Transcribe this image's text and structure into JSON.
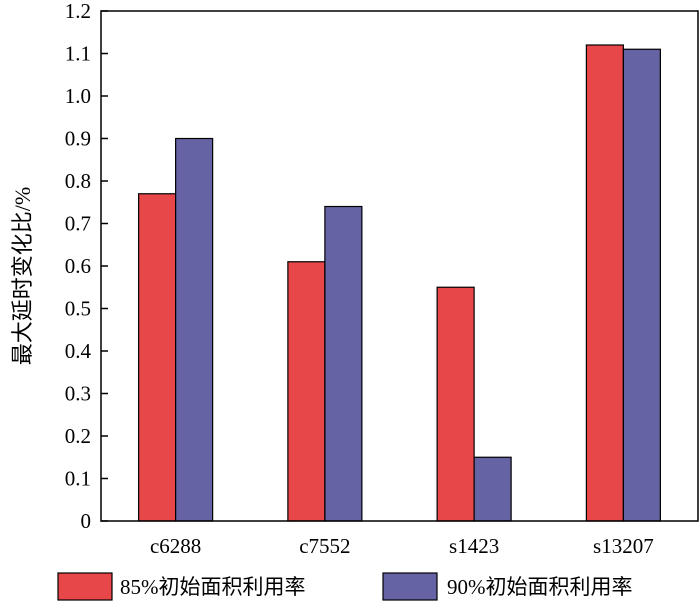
{
  "chart_data": {
    "type": "bar",
    "title": "",
    "xlabel": "",
    "ylabel": "最大延时变化比/%",
    "categories": [
      "c6288",
      "c7552",
      "s1423",
      "s13207"
    ],
    "series": [
      {
        "name": "85%初始面积利用率",
        "values": [
          0.77,
          0.61,
          0.55,
          1.12
        ],
        "color": "#e8474a"
      },
      {
        "name": "90%初始面积利用率",
        "values": [
          0.9,
          0.74,
          0.15,
          1.11
        ],
        "color": "#6563a4"
      }
    ],
    "ylim": [
      0,
      1.2
    ],
    "yticks": [
      "0",
      "0.1",
      "0.2",
      "0.3",
      "0.4",
      "0.5",
      "0.6",
      "0.7",
      "0.8",
      "0.9",
      "1.0",
      "1.1",
      "1.2"
    ],
    "grid": false,
    "legend_position": "bottom"
  }
}
